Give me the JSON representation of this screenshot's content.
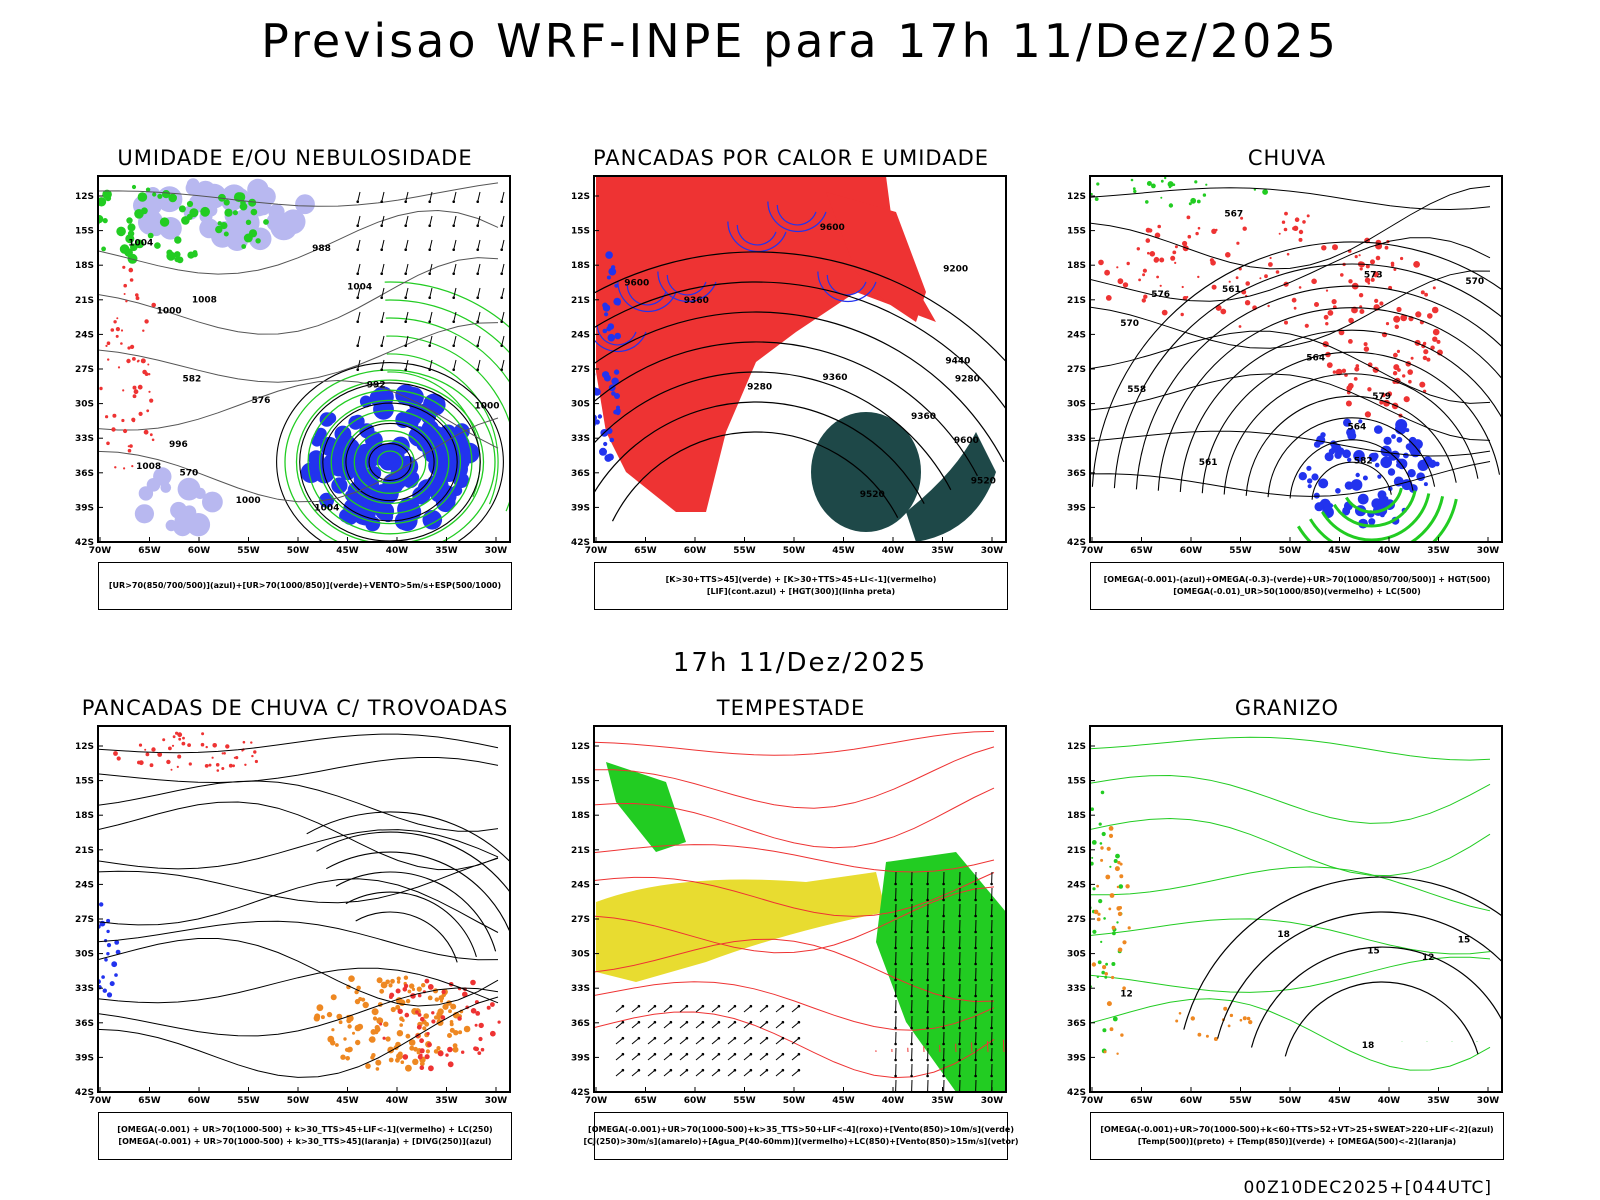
{
  "page": {
    "title": "Previsao WRF-INPE  para 17h 11/Dez/2025",
    "row_title": "17h 11/Dez/2025",
    "footer": "00Z10DEC2025+[044UTC]"
  },
  "axes": {
    "lat_labels": [
      "12S",
      "15S",
      "18S",
      "21S",
      "24S",
      "27S",
      "30S",
      "33S",
      "36S",
      "39S",
      "42S"
    ],
    "lon_labels": [
      "70W",
      "65W",
      "60W",
      "55W",
      "50W",
      "45W",
      "40W",
      "35W",
      "30W"
    ]
  },
  "colors": {
    "frame": "#000000",
    "blue": "#2233ee",
    "light_blue": "#b8b8f0",
    "green": "#22cc22",
    "red": "#ee3333",
    "orange": "#ee8822",
    "yellow": "#e8dc30",
    "dark_teal": "#1e4848",
    "black": "#000000"
  },
  "panels": [
    {
      "title": "UMIDADE E/OU NEBULOSIDADE",
      "legend": [
        "[UR>70(850/700/500)](azul)+[UR>70(1000/850)](verde)+VENTO>5m/s+ESP(500/1000)"
      ],
      "labels": [
        "1004",
        "1008",
        "1008",
        "1004",
        "1000",
        "1004",
        "1000",
        "996",
        "992",
        "988",
        "570",
        "576",
        "582",
        "1000"
      ]
    },
    {
      "title": "PANCADAS POR CALOR E UMIDADE",
      "legend": [
        "[K>30+TTS>45](verde) + [K>30+TTS>45+LI<-1](vermelho)",
        "[LIF](cont.azul) + [HGT(300)](linha preta)"
      ],
      "labels": [
        "9600",
        "9600",
        "9600",
        "9520",
        "9520",
        "9440",
        "9360",
        "9360",
        "9280",
        "9200",
        "9360",
        "9280"
      ]
    },
    {
      "title": "CHUVA",
      "legend": [
        "[OMEGA(-0.001)-(azul)+OMEGA(-0.3)-(verde)+UR>70(1000/850/700/500)] + HGT(500)",
        "[OMEGA(-0.01)_UR>50(1000/850)(vermelho) + LC(500)"
      ],
      "labels": [
        "570",
        "573",
        "576",
        "579",
        "582",
        "567",
        "564",
        "561",
        "558",
        "561",
        "570",
        "564"
      ]
    },
    {
      "title": "PANCADAS DE CHUVA C/ TROVOADAS",
      "legend": [
        "[OMEGA(-0.001) + UR>70(1000-500) + k>30_TTS>45+LIF<-1](vermelho) + LC(250)",
        "[OMEGA(-0.001) + UR>70(1000-500) + k>30_TTS>45](laranja) + [DIVG(250)](azul)"
      ],
      "labels": []
    },
    {
      "title": "TEMPESTADE",
      "legend": [
        "[OMEGA(-0.001)+UR>70(1000-500)+k>35_TTS>50+LIF<-4](roxo)+[Vento(850)>10m/s](verde)",
        "[CJ(250)>30m/s](amarelo)+[Agua_P(40-60mm)](vermelho)+LC(850)+[Vento(850)>15m/s](vetor)"
      ],
      "labels": []
    },
    {
      "title": "GRANIZO",
      "legend": [
        "[OMEGA(-0.001)+UR>70(1000-500)+k<60+TTS>52+VT>25+SWEAT>220+LIF<-2](azul)",
        "[Temp(500)](preto) + [Temp(850)](verde) + [OMEGA(500)<-2](laranja)"
      ],
      "labels": [
        "12",
        "15",
        "18",
        "12",
        "15",
        "18"
      ]
    }
  ]
}
